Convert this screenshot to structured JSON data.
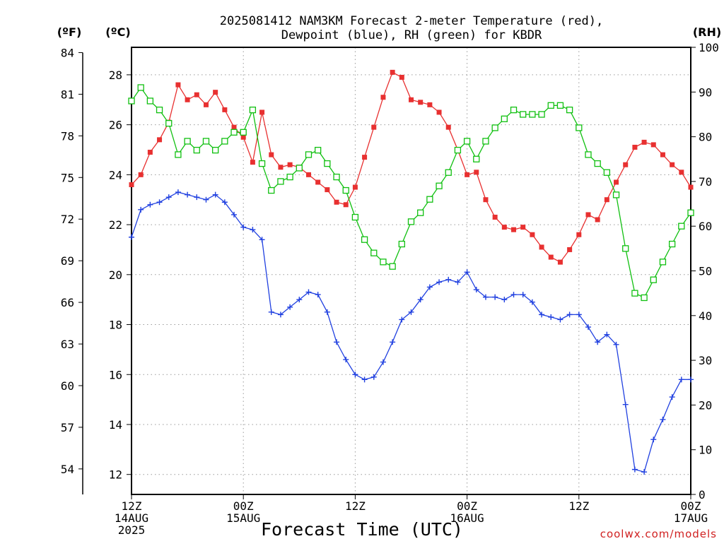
{
  "chart_data": {
    "type": "line",
    "title_line1": "2025081412 NAM3KM Forecast 2-meter Temperature (red),",
    "title_line2": "Dewpoint (blue), RH (green) for KBDR",
    "xlabel": "Forecast Time (UTC)",
    "credit": "coolwx.com/models",
    "left_outer_unit": "(ºF)",
    "left_inner_unit": "(ºC)",
    "right_unit": "(RH)",
    "x_range_hours": [
      0,
      60
    ],
    "x_ticks": [
      {
        "hour": 0,
        "line1": "12Z",
        "line2": "14AUG",
        "line3": "2025"
      },
      {
        "hour": 12,
        "line1": "00Z",
        "line2": "15AUG",
        "line3": ""
      },
      {
        "hour": 24,
        "line1": "12Z",
        "line2": "",
        "line3": ""
      },
      {
        "hour": 36,
        "line1": "00Z",
        "line2": "16AUG",
        "line3": ""
      },
      {
        "hour": 48,
        "line1": "12Z",
        "line2": "",
        "line3": ""
      },
      {
        "hour": 60,
        "line1": "00Z",
        "line2": "17AUG",
        "line3": ""
      }
    ],
    "celsius_axis": {
      "range": [
        11.2,
        29.1
      ],
      "ticks": [
        12,
        14,
        16,
        18,
        20,
        22,
        24,
        26,
        28
      ]
    },
    "fahrenheit_axis": {
      "ticks": [
        54,
        57,
        60,
        63,
        66,
        69,
        72,
        75,
        78,
        81,
        84
      ]
    },
    "rh_axis": {
      "range": [
        0,
        100
      ],
      "ticks": [
        0,
        10,
        20,
        30,
        40,
        50,
        60,
        70,
        80,
        90,
        100
      ]
    },
    "grid": true,
    "colors": {
      "temperature": "#e83030",
      "dewpoint": "#2040e0",
      "rh": "#10c010",
      "grid": "#9a9a9a"
    },
    "series": [
      {
        "key": "temperature",
        "axis": "celsius",
        "marker": "filled-square",
        "values": [
          23.6,
          24.0,
          24.9,
          25.4,
          26.1,
          27.6,
          27.0,
          27.2,
          26.8,
          27.3,
          26.6,
          25.9,
          25.5,
          24.5,
          26.5,
          24.8,
          24.3,
          24.4,
          24.3,
          24.0,
          23.7,
          23.4,
          22.9,
          22.8,
          23.5,
          24.7,
          25.9,
          27.1,
          28.1,
          27.9,
          27.0,
          26.9,
          26.8,
          26.5,
          25.9,
          25.0,
          24.0,
          24.1,
          23.0,
          22.3,
          21.9,
          21.8,
          21.9,
          21.6,
          21.1,
          20.7,
          20.5,
          21.0,
          21.6,
          22.4,
          22.2,
          23.0,
          23.7,
          24.4,
          25.1,
          25.3,
          25.2,
          24.8,
          24.4,
          24.1,
          23.5
        ]
      },
      {
        "key": "dewpoint",
        "axis": "celsius",
        "marker": "plus",
        "values": [
          21.5,
          22.6,
          22.8,
          22.9,
          23.1,
          23.3,
          23.2,
          23.1,
          23.0,
          23.2,
          22.9,
          22.4,
          21.9,
          21.8,
          21.4,
          18.5,
          18.4,
          18.7,
          19.0,
          19.3,
          19.2,
          18.5,
          17.3,
          16.6,
          16.0,
          15.8,
          15.9,
          16.5,
          17.3,
          18.2,
          18.5,
          19.0,
          19.5,
          19.7,
          19.8,
          19.7,
          20.1,
          19.4,
          19.1,
          19.1,
          19.0,
          19.2,
          19.2,
          18.9,
          18.4,
          18.3,
          18.2,
          18.4,
          18.4,
          17.9,
          17.3,
          17.6,
          17.2,
          14.8,
          12.2,
          12.1,
          13.4,
          14.2,
          15.1,
          15.8,
          15.8
        ]
      },
      {
        "key": "rh",
        "axis": "rh",
        "marker": "open-square",
        "values": [
          88,
          91,
          88,
          86,
          83,
          76,
          79,
          77,
          79,
          77,
          79,
          81,
          81,
          86,
          74,
          68,
          70,
          71,
          73,
          76,
          77,
          74,
          71,
          68,
          62,
          57,
          54,
          52,
          51,
          56,
          61,
          63,
          66,
          69,
          72,
          77,
          79,
          75,
          79,
          82,
          84,
          86,
          85,
          85,
          85,
          87,
          87,
          86,
          82,
          76,
          74,
          72,
          67,
          55,
          45,
          44,
          48,
          52,
          56,
          60,
          63
        ]
      }
    ]
  }
}
